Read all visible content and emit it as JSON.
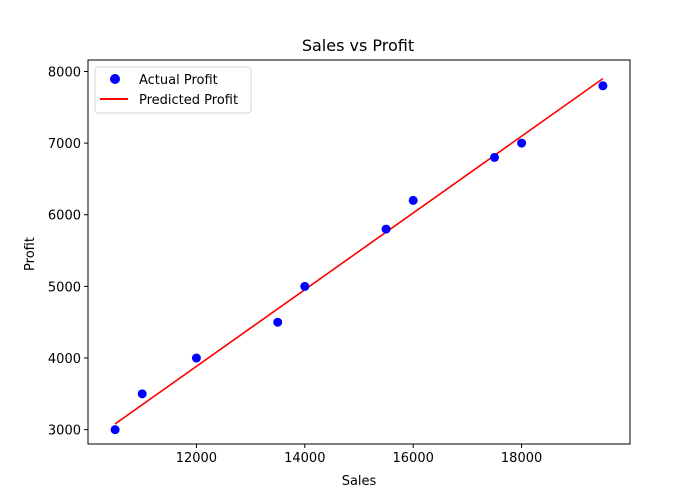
{
  "chart_data": {
    "type": "scatter",
    "title": "Sales vs Profit",
    "xlabel": "Sales",
    "ylabel": "Profit",
    "xlim": [
      10000,
      20000
    ],
    "ylim": [
      2800,
      8160
    ],
    "xticks": [
      12000,
      14000,
      16000,
      18000
    ],
    "yticks": [
      3000,
      4000,
      5000,
      6000,
      7000,
      8000
    ],
    "grid": false,
    "legend_placement": "upper-left",
    "series": [
      {
        "name": "Actual Profit",
        "kind": "scatter",
        "color": "#0000ff",
        "x": [
          10500,
          11000,
          12000,
          13500,
          14000,
          15500,
          16000,
          17500,
          18000,
          19500
        ],
        "y": [
          3000,
          3500,
          4000,
          4500,
          5000,
          5800,
          6200,
          6800,
          7000,
          7800
        ]
      },
      {
        "name": "Predicted Profit",
        "kind": "line",
        "color": "#ff0000",
        "x": [
          10500,
          19500
        ],
        "y": [
          3080,
          7900
        ]
      }
    ]
  }
}
